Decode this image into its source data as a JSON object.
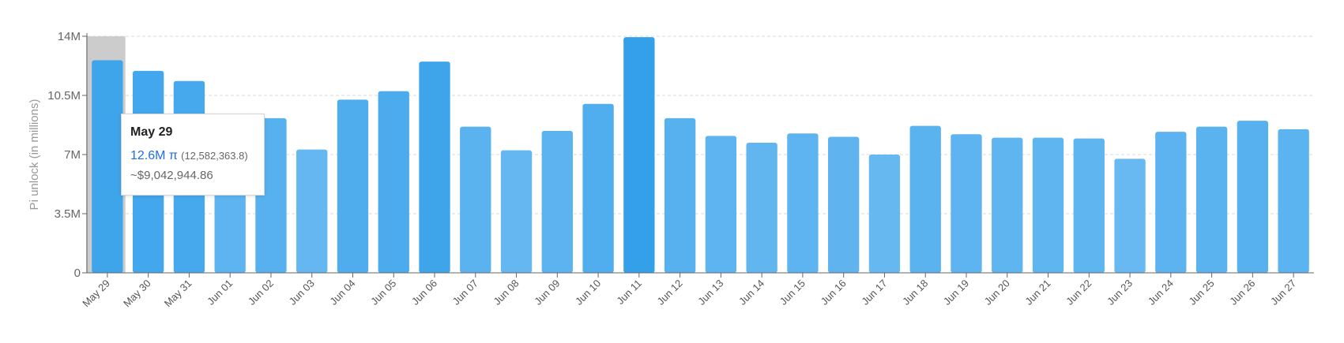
{
  "chart_data": {
    "type": "bar",
    "ylabel": "Pi unlock (in millions)",
    "ylim": [
      0,
      14000000
    ],
    "yticks": [
      {
        "value": 0,
        "label": "0"
      },
      {
        "value": 3500000,
        "label": "3.5M"
      },
      {
        "value": 7000000,
        "label": "7M"
      },
      {
        "value": 10500000,
        "label": "10.5M"
      },
      {
        "value": 14000000,
        "label": "14M"
      }
    ],
    "grid": true,
    "categories": [
      "May 29",
      "May 30",
      "May 31",
      "Jun 01",
      "Jun 02",
      "Jun 03",
      "Jun 04",
      "Jun 05",
      "Jun 06",
      "Jun 07",
      "Jun 08",
      "Jun 09",
      "Jun 10",
      "Jun 11",
      "Jun 12",
      "Jun 13",
      "Jun 14",
      "Jun 15",
      "Jun 16",
      "Jun 17",
      "Jun 18",
      "Jun 19",
      "Jun 20",
      "Jun 21",
      "Jun 22",
      "Jun 23",
      "Jun 24",
      "Jun 25",
      "Jun 26",
      "Jun 27"
    ],
    "values": [
      12582363.8,
      11950000,
      11350000,
      8200000,
      9150000,
      7300000,
      10250000,
      10750000,
      12500000,
      8650000,
      7250000,
      8400000,
      10000000,
      13950000,
      9150000,
      8100000,
      7700000,
      8250000,
      8050000,
      7000000,
      8700000,
      8200000,
      8000000,
      8000000,
      7950000,
      6750000,
      8350000,
      8650000,
      9000000,
      8500000
    ],
    "highlighted_category": "May 29"
  },
  "tooltip": {
    "date": "May 29",
    "pi_value": "12.6M π",
    "pi_exact": "(12,582,363.8)",
    "usd_value": "~$9,042,944.86"
  },
  "colors": {
    "bar_light": "#68b9f1",
    "bar_dark": "#34a0ea",
    "highlight_band": "#cccccc",
    "grid": "#d9d9d9",
    "axis": "#666666"
  }
}
